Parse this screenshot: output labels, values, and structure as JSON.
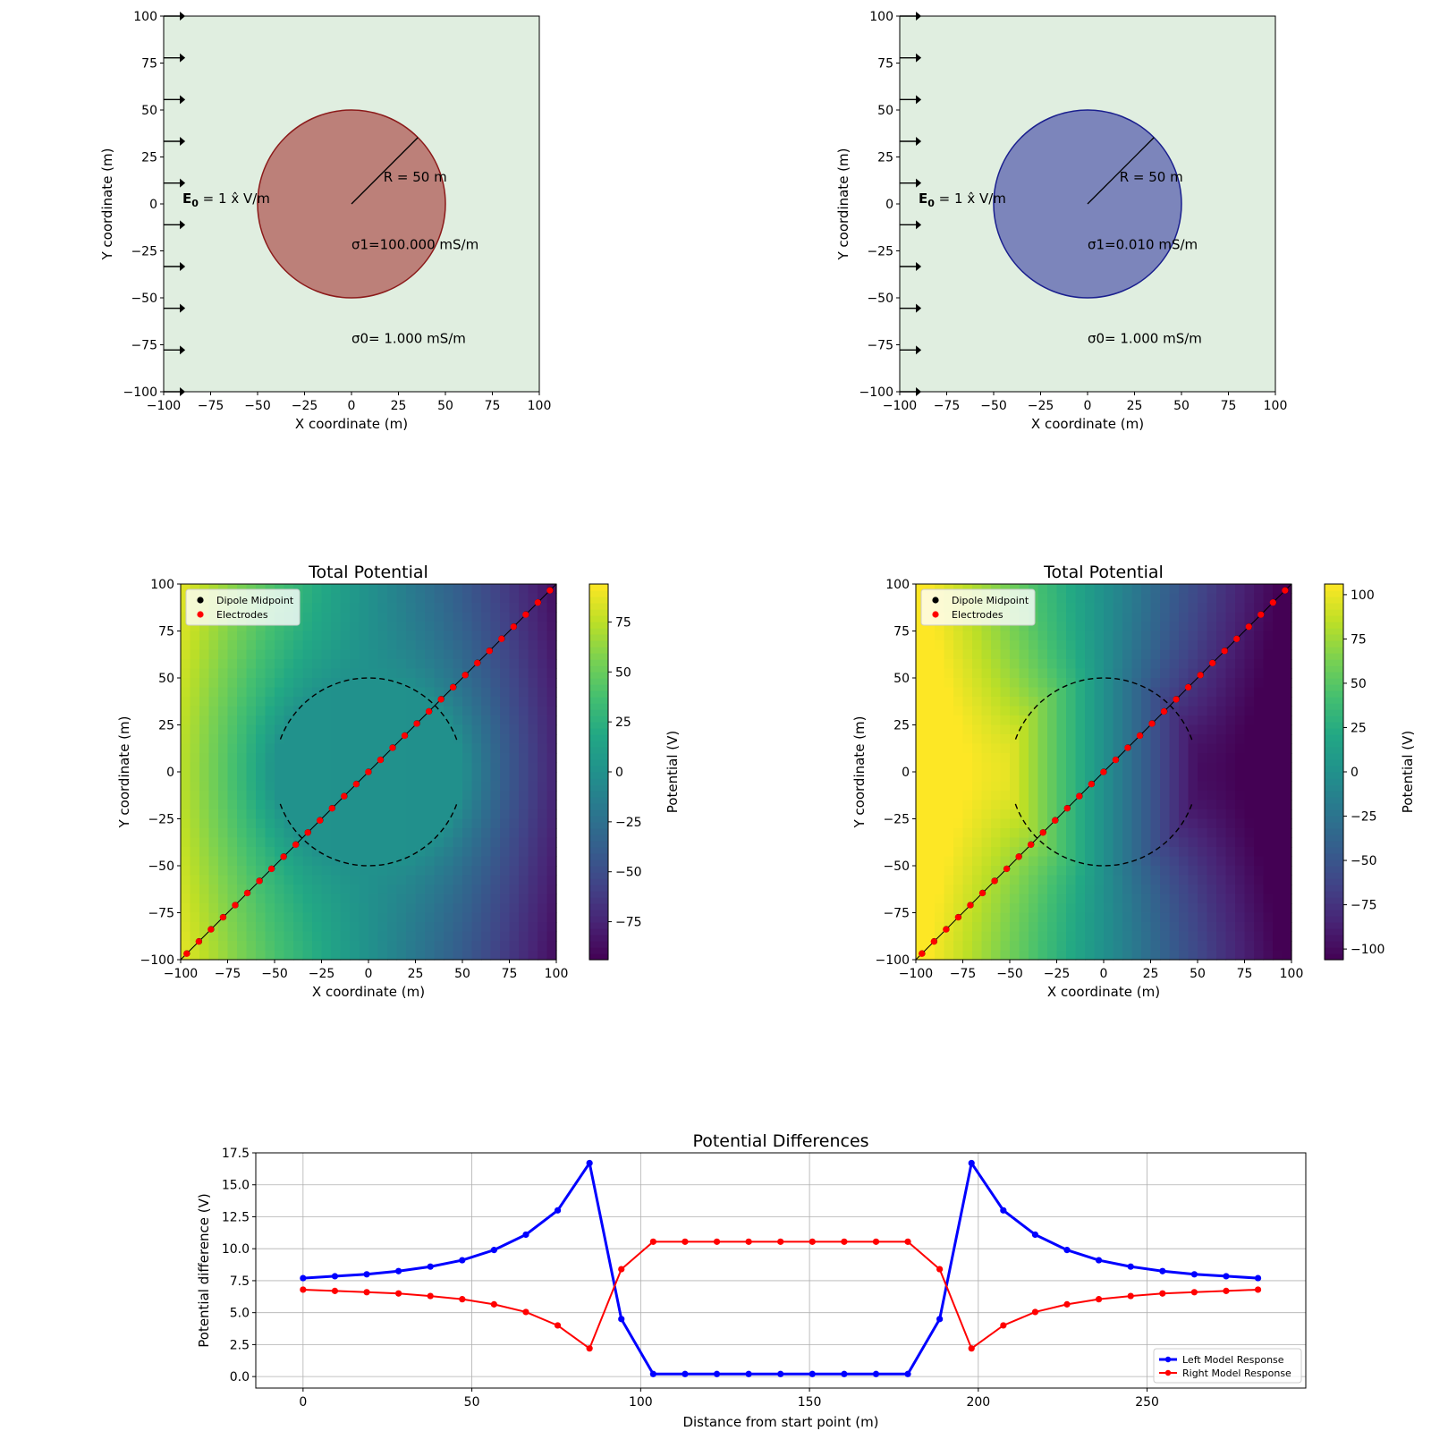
{
  "chart_data": [
    {
      "type": "diagram",
      "panel": "model-left",
      "xlabel": "X coordinate (m)",
      "ylabel": "Y coordinate (m)",
      "xlim": [
        -100,
        100
      ],
      "ylim": [
        -100,
        100
      ],
      "ticks": [
        -100,
        -75,
        -50,
        -25,
        0,
        25,
        50,
        75,
        100
      ],
      "field_label_bold": "E",
      "field_label_sub": "0",
      "field_label_rest": " = 1 x̂ V/m",
      "radius_label": "R = 50 m",
      "sigma1_label": "σ1=100.000 mS/m",
      "sigma0_label": "σ0= 1.000 mS/m",
      "sphere_radius": 50,
      "sphere_fill": "#bc8079",
      "sphere_edge": "#8b1a1a",
      "background_fill": "#e0eee0"
    },
    {
      "type": "diagram",
      "panel": "model-right",
      "xlabel": "X coordinate (m)",
      "ylabel": "Y coordinate (m)",
      "xlim": [
        -100,
        100
      ],
      "ylim": [
        -100,
        100
      ],
      "ticks": [
        -100,
        -75,
        -50,
        -25,
        0,
        25,
        50,
        75,
        100
      ],
      "field_label_bold": "E",
      "field_label_sub": "0",
      "field_label_rest": " = 1 x̂ V/m",
      "radius_label": "R = 50 m",
      "sigma1_label": "σ1=0.010 mS/m",
      "sigma0_label": "σ0= 1.000 mS/m",
      "sphere_radius": 50,
      "sphere_fill": "#7c85bb",
      "sphere_edge": "#1a1f8e",
      "background_fill": "#e0eee0"
    },
    {
      "type": "heatmap",
      "panel": "potential-left",
      "title": "Total Potential",
      "xlabel": "X coordinate (m)",
      "ylabel": "Y coordinate (m)",
      "colorbar_label": "Potential (V)",
      "colorbar_ticks": [
        -75,
        -50,
        -25,
        0,
        25,
        50,
        75
      ],
      "vmin": -94,
      "vmax": 94,
      "conductivity_ratio": 100,
      "legend": [
        "Dipole Midpoint",
        "Electrodes"
      ],
      "legend_position": "top-left",
      "xlim": [
        -100,
        100
      ],
      "ylim": [
        -100,
        100
      ],
      "ticks": [
        -100,
        -75,
        -50,
        -25,
        0,
        25,
        50,
        75,
        100
      ]
    },
    {
      "type": "heatmap",
      "panel": "potential-right",
      "title": "Total Potential",
      "xlabel": "X coordinate (m)",
      "ylabel": "Y coordinate (m)",
      "colorbar_label": "Potential (V)",
      "colorbar_ticks": [
        -100,
        -75,
        -50,
        -25,
        0,
        25,
        50,
        75,
        100
      ],
      "vmin": -106,
      "vmax": 106,
      "conductivity_ratio": 0.01,
      "legend": [
        "Dipole Midpoint",
        "Electrodes"
      ],
      "legend_position": "top-left",
      "xlim": [
        -100,
        100
      ],
      "ylim": [
        -100,
        100
      ],
      "ticks": [
        -100,
        -75,
        -50,
        -25,
        0,
        25,
        50,
        75,
        100
      ]
    },
    {
      "type": "line",
      "panel": "potential-differences",
      "title": "Potential Differences",
      "xlabel": "Distance from start point (m)",
      "ylabel": "Potential difference (V)",
      "xlim": [
        -14,
        297
      ],
      "ylim": [
        -0.9,
        17.5
      ],
      "xticks": [
        0,
        50,
        100,
        150,
        200,
        250
      ],
      "yticks": [
        0.0,
        2.5,
        5.0,
        7.5,
        10.0,
        12.5,
        15.0,
        17.5
      ],
      "ytick_labels": [
        "0.0",
        "2.5",
        "5.0",
        "7.5",
        "10.0",
        "12.5",
        "15.0",
        "17.5"
      ],
      "grid": true,
      "legend_position": "bottom-right",
      "x": [
        0,
        9.43,
        18.86,
        28.28,
        37.71,
        47.14,
        56.57,
        66.0,
        75.42,
        84.85,
        94.28,
        103.71,
        113.14,
        122.57,
        131.99,
        141.42,
        150.85,
        160.28,
        169.71,
        179.13,
        188.56,
        197.99,
        207.42,
        216.85,
        226.27,
        235.7,
        245.13,
        254.56,
        263.99,
        273.41,
        282.84
      ],
      "series": [
        {
          "name": "Left Model Response",
          "color": "#0000ff",
          "values": [
            7.7,
            7.85,
            8.0,
            8.25,
            8.6,
            9.1,
            9.9,
            11.1,
            13.0,
            16.7,
            4.5,
            0.2,
            0.2,
            0.2,
            0.2,
            0.2,
            0.2,
            0.2,
            0.2,
            0.2,
            4.5,
            16.7,
            13.0,
            11.1,
            9.9,
            9.1,
            8.6,
            8.25,
            8.0,
            7.85,
            7.7
          ]
        },
        {
          "name": "Right Model Response",
          "color": "#ff0000",
          "values": [
            6.8,
            6.7,
            6.6,
            6.5,
            6.3,
            6.05,
            5.65,
            5.05,
            4.0,
            2.2,
            8.4,
            10.55,
            10.55,
            10.55,
            10.55,
            10.55,
            10.55,
            10.55,
            10.55,
            10.55,
            8.4,
            2.2,
            4.0,
            5.05,
            5.65,
            6.05,
            6.3,
            6.5,
            6.6,
            6.7,
            6.8
          ]
        }
      ]
    }
  ]
}
